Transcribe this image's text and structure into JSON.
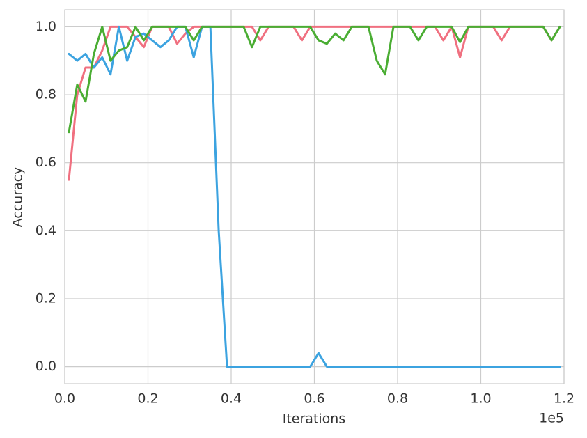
{
  "chart_data": {
    "type": "line",
    "xlabel": "Iterations",
    "ylabel": "Accuracy",
    "x_offset_label": "1e5",
    "x": [
      1000,
      3000,
      5000,
      7000,
      9000,
      11000,
      13000,
      15000,
      17000,
      19000,
      21000,
      23000,
      25000,
      27000,
      29000,
      31000,
      33000,
      35000,
      37000,
      39000,
      41000,
      43000,
      45000,
      47000,
      49000,
      51000,
      53000,
      55000,
      57000,
      59000,
      61000,
      63000,
      65000,
      67000,
      69000,
      71000,
      73000,
      75000,
      77000,
      79000,
      81000,
      83000,
      85000,
      87000,
      89000,
      91000,
      93000,
      95000,
      97000,
      99000,
      101000,
      103000,
      105000,
      107000,
      109000,
      111000,
      113000,
      115000,
      117000,
      119000
    ],
    "series": [
      {
        "color": "#f07080",
        "values": [
          0.55,
          0.8,
          0.88,
          0.88,
          0.93,
          1.0,
          1.0,
          1.0,
          0.97,
          0.94,
          1.0,
          1.0,
          1.0,
          0.95,
          0.98,
          1.0,
          1.0,
          1.0,
          1.0,
          1.0,
          1.0,
          1.0,
          1.0,
          0.96,
          1.0,
          1.0,
          1.0,
          1.0,
          0.96,
          1.0,
          1.0,
          1.0,
          1.0,
          1.0,
          1.0,
          1.0,
          1.0,
          1.0,
          1.0,
          1.0,
          1.0,
          1.0,
          1.0,
          1.0,
          1.0,
          0.96,
          1.0,
          0.91,
          1.0,
          1.0,
          1.0,
          1.0,
          0.96,
          1.0,
          1.0,
          1.0,
          1.0,
          1.0,
          0.96,
          1.0
        ]
      },
      {
        "color": "#3ca3e0",
        "values": [
          0.92,
          0.9,
          0.92,
          0.88,
          0.91,
          0.86,
          1.0,
          0.9,
          0.97,
          0.98,
          0.96,
          0.94,
          0.96,
          1.0,
          1.0,
          0.91,
          1.0,
          1.0,
          0.4,
          0,
          0,
          0,
          0,
          0,
          0,
          0,
          0,
          0,
          0,
          0,
          0.04,
          0,
          0,
          0,
          0,
          0,
          0,
          0,
          0,
          0,
          0,
          0,
          0,
          0,
          0,
          0,
          0,
          0,
          0,
          0,
          0,
          0,
          0,
          0,
          0,
          0,
          0,
          0,
          0,
          0
        ]
      },
      {
        "color": "#4aad33",
        "values": [
          0.69,
          0.83,
          0.78,
          0.92,
          1.0,
          0.9,
          0.93,
          0.94,
          1.0,
          0.96,
          1.0,
          1.0,
          1.0,
          1.0,
          1.0,
          0.96,
          1.0,
          1.0,
          1.0,
          1.0,
          1.0,
          1.0,
          0.94,
          1.0,
          1.0,
          1.0,
          1.0,
          1.0,
          1.0,
          1.0,
          0.96,
          0.95,
          0.98,
          0.96,
          1.0,
          1.0,
          1.0,
          0.9,
          0.86,
          1.0,
          1.0,
          1.0,
          0.96,
          1.0,
          1.0,
          1.0,
          1.0,
          0.955,
          1.0,
          1.0,
          1.0,
          1.0,
          1.0,
          1.0,
          1.0,
          1.0,
          1.0,
          1.0,
          0.96,
          1.0
        ]
      }
    ],
    "xlim": [
      0,
      120000
    ],
    "ylim": [
      -0.05,
      1.05
    ],
    "xticks": [
      {
        "value": 0,
        "label": "0.0"
      },
      {
        "value": 20000,
        "label": "0.2"
      },
      {
        "value": 40000,
        "label": "0.4"
      },
      {
        "value": 60000,
        "label": "0.6"
      },
      {
        "value": 80000,
        "label": "0.8"
      },
      {
        "value": 100000,
        "label": "1.0"
      },
      {
        "value": 120000,
        "label": "1.2"
      }
    ],
    "yticks": [
      {
        "value": 0,
        "label": "0.0"
      },
      {
        "value": 0.2,
        "label": "0.2"
      },
      {
        "value": 0.4,
        "label": "0.4"
      },
      {
        "value": 0.6,
        "label": "0.6"
      },
      {
        "value": 0.8,
        "label": "0.8"
      },
      {
        "value": 1,
        "label": "1.0"
      }
    ],
    "grid": true
  }
}
